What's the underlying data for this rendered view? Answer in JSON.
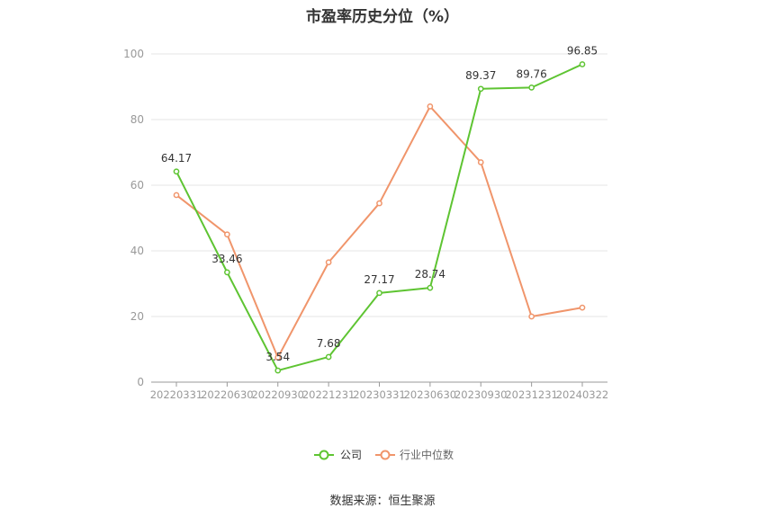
{
  "title": "市盈率历史分位（%）",
  "source": "数据来源：恒生聚源",
  "chart_data": {
    "type": "line",
    "categories": [
      "20220331",
      "20220630",
      "20220930",
      "20221231",
      "20230331",
      "20230630",
      "20230930",
      "20231231",
      "20240322"
    ],
    "ylim": [
      0,
      100
    ],
    "yticks": [
      0,
      20,
      40,
      60,
      80,
      100
    ],
    "grid": true,
    "legend_position": "bottom-center",
    "series": [
      {
        "name": "公司",
        "color": "#5ec432",
        "values": [
          64.17,
          33.46,
          3.54,
          7.68,
          27.17,
          28.74,
          89.37,
          89.76,
          96.85
        ],
        "labels": [
          "64.17",
          "33.46",
          "3.54",
          "7.68",
          "27.17",
          "28.74",
          "89.37",
          "89.76",
          "96.85"
        ]
      },
      {
        "name": "行业中位数",
        "color": "#f0956b",
        "values": [
          57.0,
          45.0,
          7.5,
          36.5,
          54.5,
          84.0,
          67.0,
          20.0,
          22.7
        ]
      }
    ]
  }
}
